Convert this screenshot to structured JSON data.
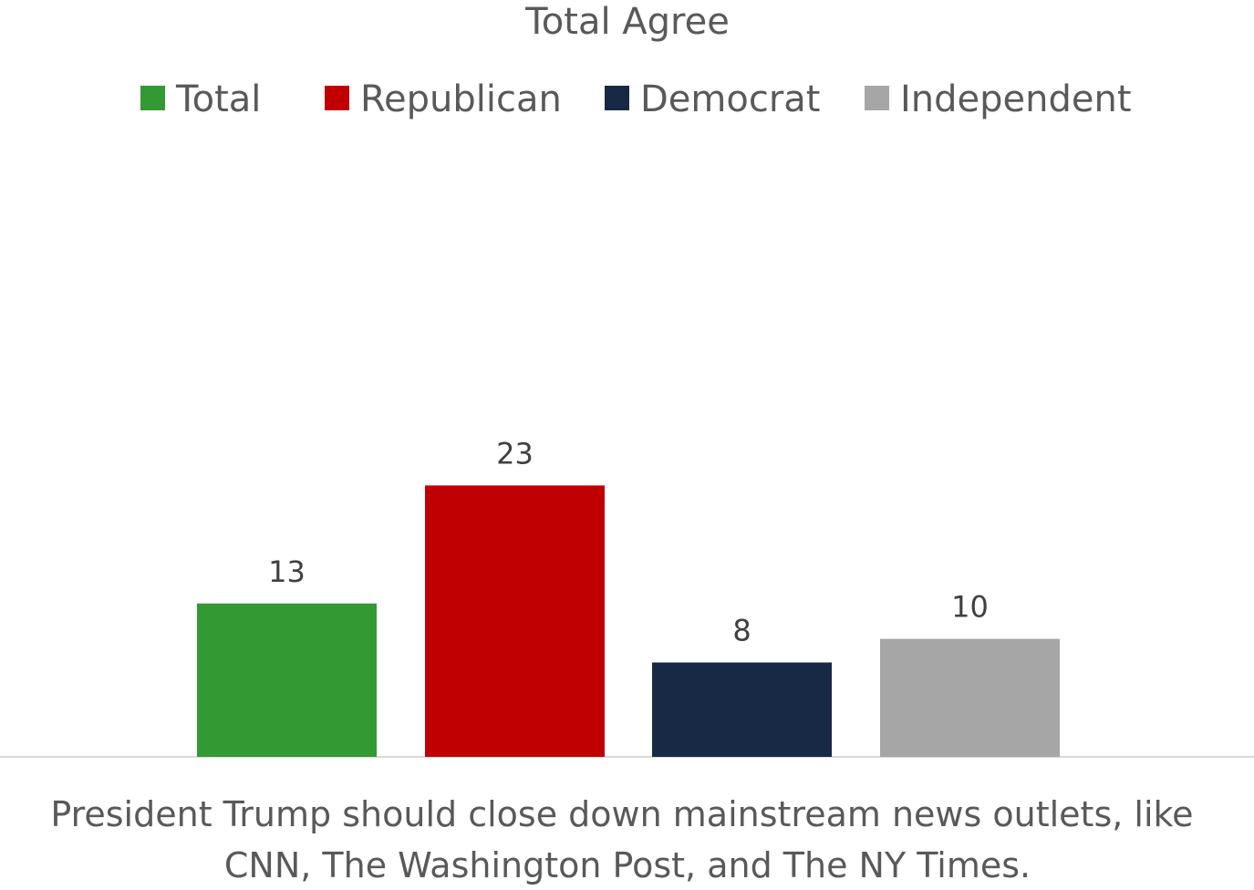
{
  "chart_data": {
    "type": "bar",
    "title": "Total Agree",
    "categories": [
      "President Trump should close down mainstream news outlets, like CNN, The Washington Post, and The NY Times."
    ],
    "category_label_lines": [
      "President Trump should close down mainstream news outlets, like",
      "CNN, The Washington Post, and The NY Times."
    ],
    "series": [
      {
        "name": "Total",
        "values": [
          13
        ],
        "color": "#339933"
      },
      {
        "name": "Republican",
        "values": [
          23
        ],
        "color": "#c00000"
      },
      {
        "name": "Democrat",
        "values": [
          8
        ],
        "color": "#172945"
      },
      {
        "name": "Independent",
        "values": [
          10
        ],
        "color": "#a6a6a6"
      }
    ],
    "legend_position": "top",
    "grid": false,
    "data_labels": true,
    "ylim": [
      0,
      50
    ]
  }
}
